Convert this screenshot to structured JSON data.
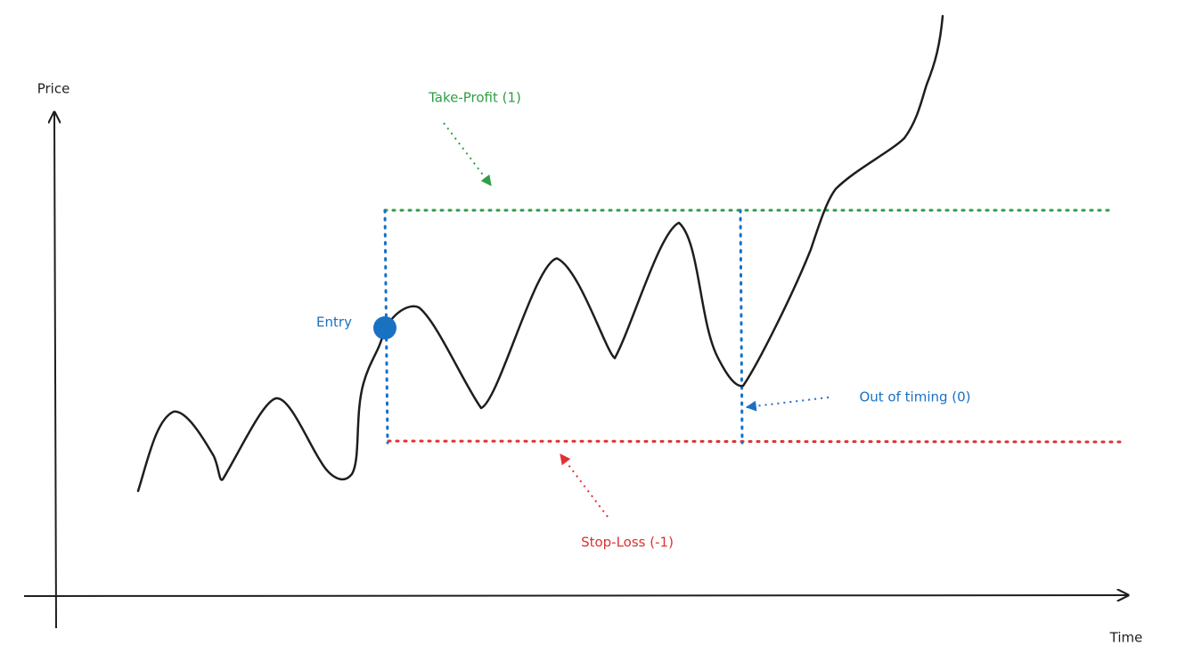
{
  "axes": {
    "y_label": "Price",
    "x_label": "Time"
  },
  "annotations": {
    "take_profit": "Take-Profit (1)",
    "stop_loss": "Stop-Loss (-1)",
    "entry": "Entry",
    "timeout": "Out of timing (0)"
  }
}
